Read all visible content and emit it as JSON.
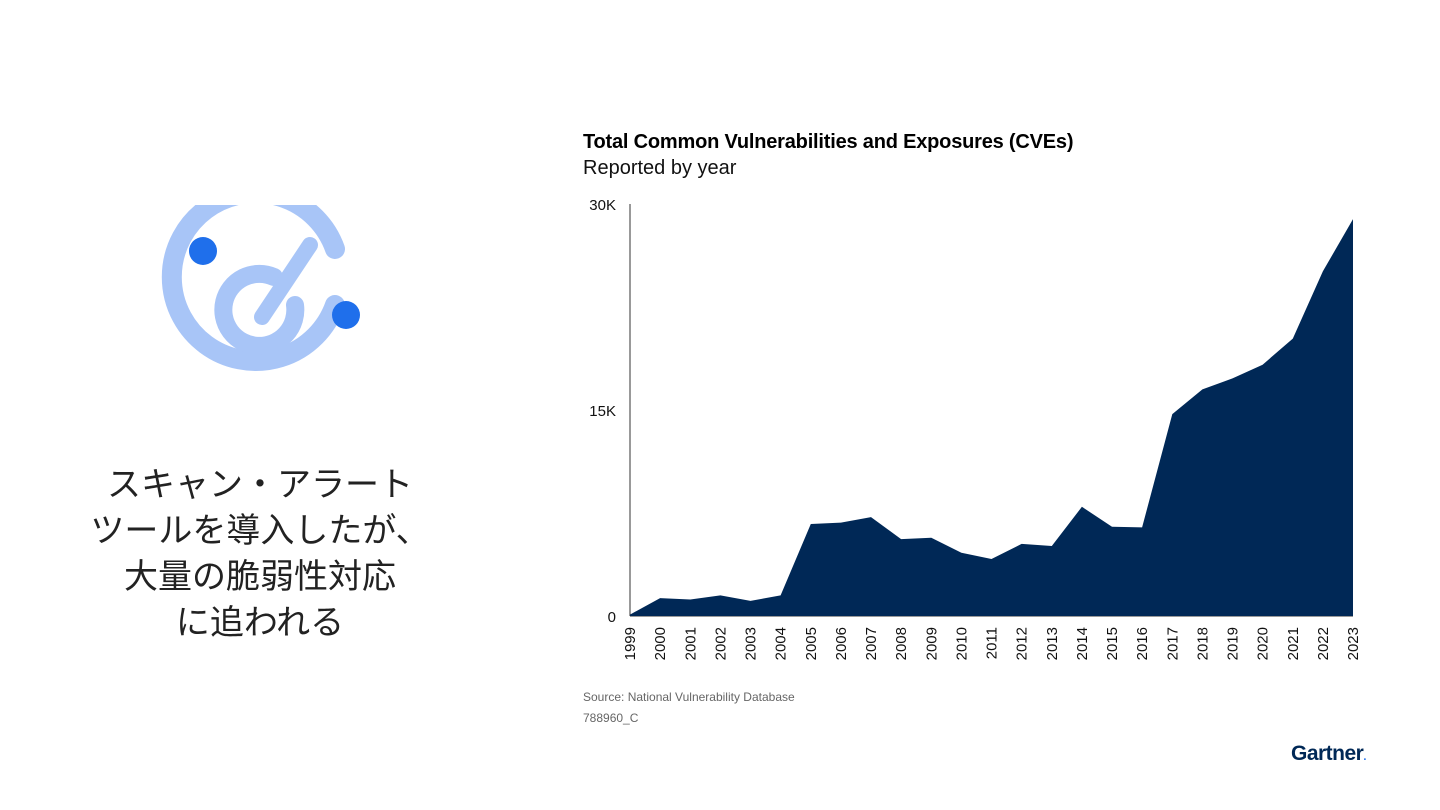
{
  "headline": {
    "lines": [
      "スキャン・アラート",
      "ツールを導入したが、",
      "大量の脆弱性対応",
      "に追われる"
    ]
  },
  "chart_data": {
    "type": "area",
    "title": "Total Common Vulnerabilities and Exposures (CVEs)",
    "subtitle": "Reported by year",
    "xlabel": "",
    "ylabel": "",
    "ylim": [
      0,
      30000
    ],
    "y_ticks": [
      {
        "value": 0,
        "label": "0"
      },
      {
        "value": 15000,
        "label": "15K"
      },
      {
        "value": 30000,
        "label": "30K"
      }
    ],
    "categories": [
      "1999",
      "2000",
      "2001",
      "2002",
      "2003",
      "2004",
      "2005",
      "2006",
      "2007",
      "2008",
      "2009",
      "2010",
      "2011",
      "2012",
      "2013",
      "2014",
      "2015",
      "2016",
      "2017",
      "2018",
      "2019",
      "2020",
      "2021",
      "2022",
      "2023"
    ],
    "values": [
      100,
      1300,
      1200,
      1500,
      1100,
      1500,
      6700,
      6800,
      7200,
      5600,
      5700,
      4600,
      4150,
      5250,
      5100,
      7950,
      6500,
      6450,
      14700,
      16500,
      17300,
      18300,
      20200,
      25100,
      28900
    ],
    "color": "#002856",
    "grid": false
  },
  "source": "Source: National Vulnerability Database",
  "code": "788960_C",
  "logo": {
    "text": "Gartner",
    "dot": "."
  },
  "colors": {
    "icon_light": "#a8c5f7",
    "icon_dot": "#1f6feb",
    "area": "#002856"
  }
}
